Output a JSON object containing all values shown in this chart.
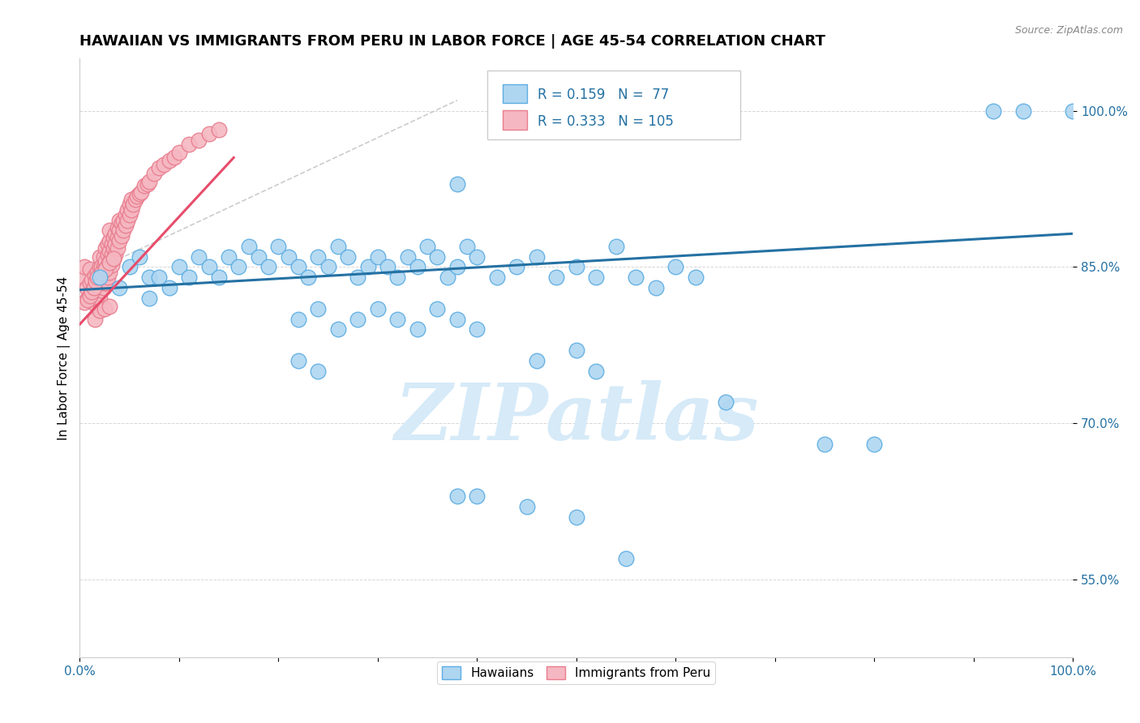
{
  "title": "HAWAIIAN VS IMMIGRANTS FROM PERU IN LABOR FORCE | AGE 45-54 CORRELATION CHART",
  "source_text": "Source: ZipAtlas.com",
  "ylabel": "In Labor Force | Age 45-54",
  "watermark": "ZIPatlas",
  "legend_blue_R": "0.159",
  "legend_blue_N": "77",
  "legend_pink_R": "0.333",
  "legend_pink_N": "105",
  "legend_label_blue": "Hawaiians",
  "legend_label_pink": "Immigrants from Peru",
  "xlim": [
    0.0,
    1.0
  ],
  "ylim": [
    0.475,
    1.05
  ],
  "ytick_positions": [
    0.55,
    0.7,
    0.85,
    1.0
  ],
  "ytick_labels": [
    "55.0%",
    "70.0%",
    "85.0%",
    "100.0%"
  ],
  "xtick_positions": [
    0.0,
    0.1,
    0.2,
    0.3,
    0.4,
    0.5,
    0.6,
    0.7,
    0.8,
    0.9,
    1.0
  ],
  "xtick_labels": [
    "0.0%",
    "",
    "",
    "",
    "",
    "",
    "",
    "",
    "",
    "",
    "100.0%"
  ],
  "blue_color": "#AED6F1",
  "pink_color": "#F5B7C1",
  "blue_edge_color": "#5DADE2",
  "pink_edge_color": "#E87D8E",
  "blue_line_color": "#2471A3",
  "pink_line_color": "#E74C6B",
  "title_fontsize": 13,
  "tick_fontsize": 11,
  "blue_trend_x": [
    0.0,
    1.0
  ],
  "blue_trend_y": [
    0.828,
    0.882
  ],
  "pink_trend_x": [
    0.0,
    0.155
  ],
  "pink_trend_y": [
    0.795,
    0.955
  ],
  "ref_line_x": [
    0.0,
    0.38
  ],
  "ref_line_y": [
    0.84,
    1.01
  ],
  "blue_x": [
    0.02,
    0.04,
    0.05,
    0.06,
    0.07,
    0.07,
    0.08,
    0.09,
    0.1,
    0.11,
    0.12,
    0.13,
    0.14,
    0.15,
    0.16,
    0.17,
    0.18,
    0.19,
    0.2,
    0.21,
    0.22,
    0.23,
    0.24,
    0.25,
    0.26,
    0.27,
    0.28,
    0.29,
    0.3,
    0.31,
    0.32,
    0.33,
    0.34,
    0.35,
    0.36,
    0.37,
    0.38,
    0.39,
    0.4,
    0.42,
    0.44,
    0.46,
    0.48,
    0.5,
    0.52,
    0.54,
    0.56,
    0.58,
    0.6,
    0.62,
    0.22,
    0.24,
    0.26,
    0.28,
    0.3,
    0.32,
    0.34,
    0.36,
    0.38,
    0.4,
    0.22,
    0.24,
    0.46,
    0.5,
    0.52,
    0.65,
    0.75,
    0.8,
    0.92,
    0.95,
    1.0,
    0.38,
    0.4,
    0.45,
    0.5,
    0.55,
    0.38
  ],
  "blue_y": [
    0.84,
    0.83,
    0.85,
    0.86,
    0.84,
    0.82,
    0.84,
    0.83,
    0.85,
    0.84,
    0.86,
    0.85,
    0.84,
    0.86,
    0.85,
    0.87,
    0.86,
    0.85,
    0.87,
    0.86,
    0.85,
    0.84,
    0.86,
    0.85,
    0.87,
    0.86,
    0.84,
    0.85,
    0.86,
    0.85,
    0.84,
    0.86,
    0.85,
    0.87,
    0.86,
    0.84,
    0.85,
    0.87,
    0.86,
    0.84,
    0.85,
    0.86,
    0.84,
    0.85,
    0.84,
    0.87,
    0.84,
    0.83,
    0.85,
    0.84,
    0.8,
    0.81,
    0.79,
    0.8,
    0.81,
    0.8,
    0.79,
    0.81,
    0.8,
    0.79,
    0.76,
    0.75,
    0.76,
    0.77,
    0.75,
    0.72,
    0.68,
    0.68,
    1.0,
    1.0,
    1.0,
    0.63,
    0.63,
    0.62,
    0.61,
    0.57,
    0.93
  ],
  "pink_x": [
    0.005,
    0.005,
    0.007,
    0.008,
    0.01,
    0.01,
    0.01,
    0.012,
    0.012,
    0.014,
    0.015,
    0.015,
    0.015,
    0.016,
    0.017,
    0.018,
    0.018,
    0.018,
    0.02,
    0.02,
    0.02,
    0.02,
    0.02,
    0.022,
    0.022,
    0.022,
    0.024,
    0.024,
    0.024,
    0.024,
    0.025,
    0.025,
    0.026,
    0.026,
    0.026,
    0.026,
    0.028,
    0.028,
    0.028,
    0.028,
    0.03,
    0.03,
    0.03,
    0.03,
    0.03,
    0.032,
    0.032,
    0.032,
    0.034,
    0.034,
    0.034,
    0.036,
    0.036,
    0.036,
    0.038,
    0.038,
    0.038,
    0.04,
    0.04,
    0.04,
    0.042,
    0.042,
    0.044,
    0.044,
    0.046,
    0.046,
    0.048,
    0.048,
    0.05,
    0.05,
    0.052,
    0.052,
    0.054,
    0.056,
    0.058,
    0.06,
    0.062,
    0.065,
    0.068,
    0.07,
    0.075,
    0.08,
    0.085,
    0.09,
    0.095,
    0.1,
    0.11,
    0.12,
    0.13,
    0.14,
    0.015,
    0.02,
    0.025,
    0.03,
    0.005,
    0.008,
    0.01,
    0.012,
    0.014,
    0.016,
    0.018,
    0.022,
    0.026,
    0.03,
    0.034
  ],
  "pink_y": [
    0.84,
    0.85,
    0.83,
    0.82,
    0.82,
    0.835,
    0.848,
    0.825,
    0.838,
    0.815,
    0.82,
    0.832,
    0.842,
    0.828,
    0.838,
    0.82,
    0.832,
    0.845,
    0.82,
    0.83,
    0.84,
    0.85,
    0.86,
    0.828,
    0.838,
    0.85,
    0.83,
    0.84,
    0.85,
    0.86,
    0.835,
    0.848,
    0.835,
    0.845,
    0.856,
    0.868,
    0.84,
    0.852,
    0.862,
    0.872,
    0.845,
    0.855,
    0.865,
    0.875,
    0.885,
    0.852,
    0.862,
    0.872,
    0.858,
    0.868,
    0.878,
    0.862,
    0.872,
    0.882,
    0.868,
    0.878,
    0.888,
    0.875,
    0.885,
    0.895,
    0.88,
    0.892,
    0.885,
    0.895,
    0.89,
    0.9,
    0.895,
    0.905,
    0.9,
    0.91,
    0.905,
    0.915,
    0.91,
    0.915,
    0.918,
    0.92,
    0.922,
    0.928,
    0.93,
    0.932,
    0.94,
    0.945,
    0.948,
    0.952,
    0.955,
    0.96,
    0.968,
    0.972,
    0.978,
    0.982,
    0.8,
    0.808,
    0.81,
    0.812,
    0.816,
    0.818,
    0.822,
    0.826,
    0.83,
    0.836,
    0.84,
    0.844,
    0.848,
    0.854,
    0.858
  ]
}
